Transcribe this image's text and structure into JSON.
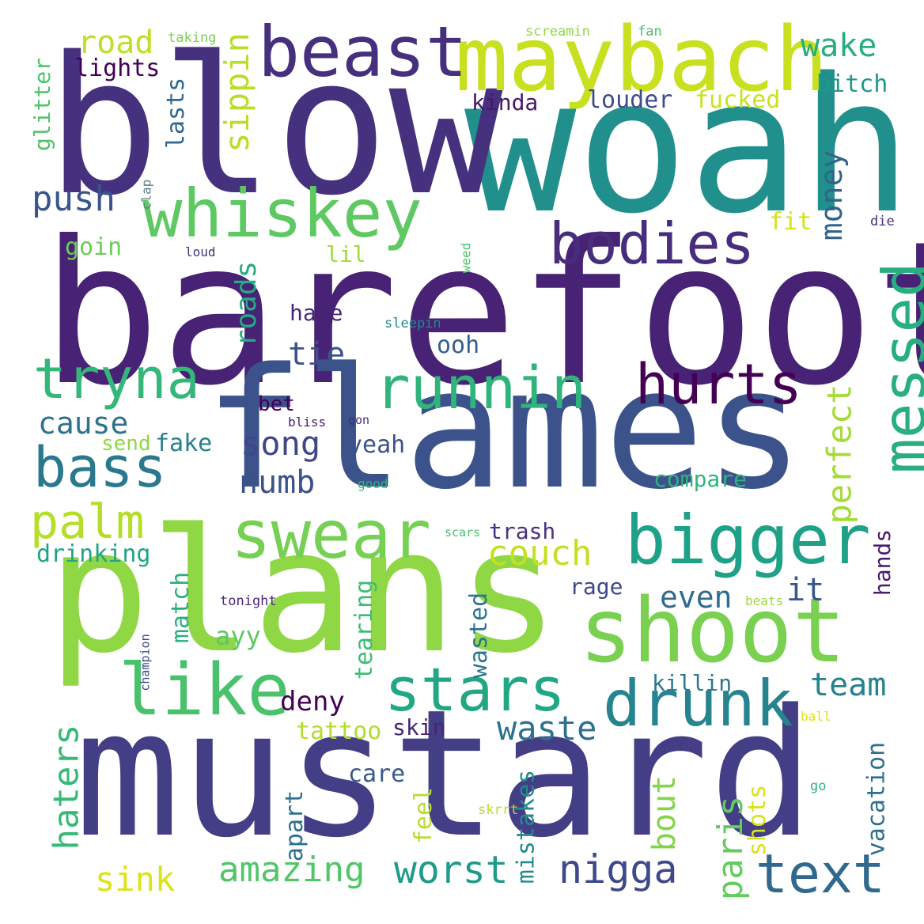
{
  "words": [
    {
      "text": "barefoot",
      "color": "#482274"
    },
    {
      "text": "mustard",
      "color": "#433e85"
    },
    {
      "text": "woah",
      "color": "#21908d"
    },
    {
      "text": "blow",
      "color": "#46317e"
    },
    {
      "text": "flames",
      "color": "#3b528b"
    },
    {
      "text": "plans",
      "color": "#8fd744"
    },
    {
      "text": "shoot",
      "color": "#7ad151"
    },
    {
      "text": "maybach",
      "color": "#c8e020"
    },
    {
      "text": "whiskey",
      "color": "#5ec962"
    },
    {
      "text": "beast",
      "color": "#46307e"
    },
    {
      "text": "swear",
      "color": "#75d054"
    },
    {
      "text": "bigger",
      "color": "#1fa187"
    },
    {
      "text": "like",
      "color": "#4ac16d"
    },
    {
      "text": "runnin",
      "color": "#2fb47c"
    },
    {
      "text": "bodies",
      "color": "#472d7b"
    },
    {
      "text": "messed",
      "color": "#28ae80"
    },
    {
      "text": "hurts",
      "color": "#440154"
    },
    {
      "text": "drunk",
      "color": "#25848e"
    },
    {
      "text": "stars",
      "color": "#22a785"
    },
    {
      "text": "tryna",
      "color": "#35b779"
    },
    {
      "text": "bass",
      "color": "#2a788e"
    },
    {
      "text": "text",
      "color": "#31688e"
    },
    {
      "text": "palm",
      "color": "#b5de2b"
    },
    {
      "text": "amazing",
      "color": "#52c569"
    },
    {
      "text": "worst",
      "color": "#1e9b8a"
    },
    {
      "text": "nigga",
      "color": "#3e4989"
    },
    {
      "text": "sink",
      "color": "#dde318"
    },
    {
      "text": "haters",
      "color": "#38b977"
    },
    {
      "text": "paris",
      "color": "#63cb5f"
    },
    {
      "text": "perfect",
      "color": "#a5db36"
    },
    {
      "text": "road",
      "color": "#bddf26"
    },
    {
      "text": "lights",
      "color": "#440154"
    },
    {
      "text": "sippin",
      "color": "#b8de29"
    },
    {
      "text": "wake",
      "color": "#26ad81"
    },
    {
      "text": "bitch",
      "color": "#1f998a"
    },
    {
      "text": "lasts",
      "color": "#31688e"
    },
    {
      "text": "kinda",
      "color": "#481769"
    },
    {
      "text": "louder",
      "color": "#3e4c8a"
    },
    {
      "text": "fucked",
      "color": "#cae11f"
    },
    {
      "text": "push",
      "color": "#39568c"
    },
    {
      "text": "money",
      "color": "#33638d"
    },
    {
      "text": "glitter",
      "color": "#4ec36b"
    },
    {
      "text": "roads",
      "color": "#25ac82"
    },
    {
      "text": "lil",
      "color": "#a0da39"
    },
    {
      "text": "hate",
      "color": "#482677"
    },
    {
      "text": "tie",
      "color": "#3b528b"
    },
    {
      "text": "ooh",
      "color": "#355f8d"
    },
    {
      "text": "cause",
      "color": "#2c728e"
    },
    {
      "text": "song",
      "color": "#3f4788"
    },
    {
      "text": "numb",
      "color": "#3b528b"
    },
    {
      "text": "bet",
      "color": "#440154"
    },
    {
      "text": "yeah",
      "color": "#3b528b"
    },
    {
      "text": "send",
      "color": "#90d743"
    },
    {
      "text": "fake",
      "color": "#27808e"
    },
    {
      "text": "couch",
      "color": "#c5e021"
    },
    {
      "text": "trash",
      "color": "#46327e"
    },
    {
      "text": "compare",
      "color": "#2fb47c"
    },
    {
      "text": "drinking",
      "color": "#20a486"
    },
    {
      "text": "match",
      "color": "#29af7f"
    },
    {
      "text": "tearing",
      "color": "#3dbc74"
    },
    {
      "text": "rage",
      "color": "#3e4a89"
    },
    {
      "text": "even",
      "color": "#306a8e"
    },
    {
      "text": "it",
      "color": "#3a548c"
    },
    {
      "text": "hands",
      "color": "#481a6c"
    },
    {
      "text": "ayy",
      "color": "#5ac864"
    },
    {
      "text": "wasted",
      "color": "#2b758e"
    },
    {
      "text": "deny",
      "color": "#440154"
    },
    {
      "text": "killin",
      "color": "#2a778e"
    },
    {
      "text": "team",
      "color": "#26818e"
    },
    {
      "text": "waste",
      "color": "#2d708e"
    },
    {
      "text": "skin",
      "color": "#482576"
    },
    {
      "text": "tattoo",
      "color": "#b2dd2d"
    },
    {
      "text": "care",
      "color": "#38598c"
    },
    {
      "text": "apart",
      "color": "#2c718e"
    },
    {
      "text": "feel",
      "color": "#b5de2b"
    },
    {
      "text": "mistakes",
      "color": "#228c8d"
    },
    {
      "text": "bout",
      "color": "#84d44b"
    },
    {
      "text": "shots",
      "color": "#d8e219"
    },
    {
      "text": "vacation",
      "color": "#2e6f8e"
    },
    {
      "text": "goin",
      "color": "#6ccd5a"
    },
    {
      "text": "fit",
      "color": "#d2e21b"
    },
    {
      "text": "taking",
      "color": "#7ad151"
    },
    {
      "text": "screamin",
      "color": "#8fd744"
    },
    {
      "text": "fan",
      "color": "#4ac16d"
    },
    {
      "text": "clap",
      "color": "#5b7f8f"
    },
    {
      "text": "die",
      "color": "#46307e"
    },
    {
      "text": "loud",
      "color": "#46327e"
    },
    {
      "text": "weed",
      "color": "#4ac16d"
    },
    {
      "text": "sleepin",
      "color": "#24878e"
    },
    {
      "text": "bliss",
      "color": "#481c6e"
    },
    {
      "text": "gon",
      "color": "#472c7a"
    },
    {
      "text": "good",
      "color": "#2ab07f"
    },
    {
      "text": "scars",
      "color": "#4ac16d"
    },
    {
      "text": "tonight",
      "color": "#482878"
    },
    {
      "text": "beats",
      "color": "#9bd93c"
    },
    {
      "text": "champion",
      "color": "#3e4a89"
    },
    {
      "text": "ball",
      "color": "#dde318"
    },
    {
      "text": "go",
      "color": "#2db27d"
    },
    {
      "text": "skrrt",
      "color": "#b5de2b"
    }
  ]
}
